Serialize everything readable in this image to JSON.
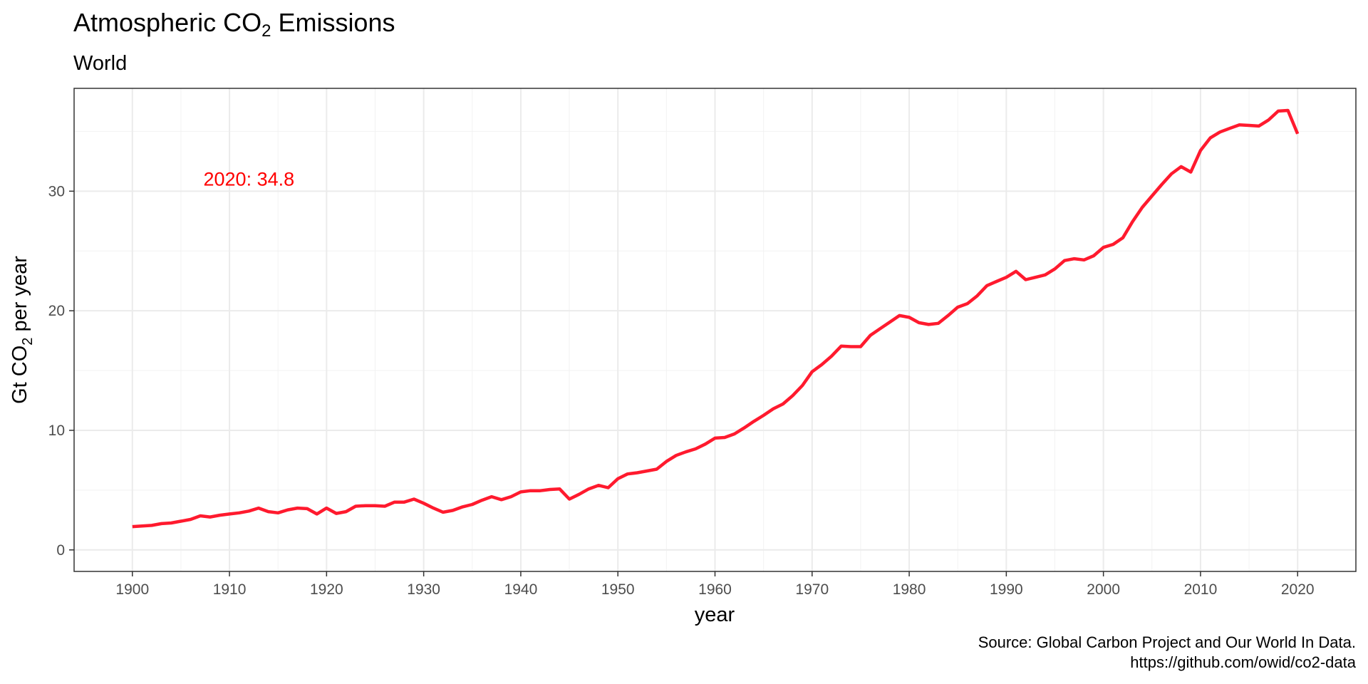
{
  "title_prefix": "Atmospheric CO",
  "title_sub": "2",
  "title_suffix": " Emissions",
  "subtitle": "World",
  "caption_line1": "Source: Global Carbon Project and Our World In Data.",
  "caption_line2": "https://github.com/owid/co2-data",
  "chart_data": {
    "type": "line",
    "xlabel": "year",
    "ylabel": "Gt CO2 per year",
    "xlim": [
      1894,
      2026
    ],
    "ylim": [
      -1.8,
      38.6
    ],
    "xticks": [
      1900,
      1910,
      1920,
      1930,
      1940,
      1950,
      1960,
      1970,
      1980,
      1990,
      2000,
      2010,
      2020
    ],
    "yticks": [
      0,
      10,
      20,
      30
    ],
    "grid": true,
    "line_color": "#ff1a2e",
    "annotation": {
      "text": "2020: 34.8",
      "x": 1912,
      "y": 31.0,
      "color": "#ff0000"
    },
    "x": [
      1900,
      1901,
      1902,
      1903,
      1904,
      1905,
      1906,
      1907,
      1908,
      1909,
      1910,
      1911,
      1912,
      1913,
      1914,
      1915,
      1916,
      1917,
      1918,
      1919,
      1920,
      1921,
      1922,
      1923,
      1924,
      1925,
      1926,
      1927,
      1928,
      1929,
      1930,
      1931,
      1932,
      1933,
      1934,
      1935,
      1936,
      1937,
      1938,
      1939,
      1940,
      1941,
      1942,
      1943,
      1944,
      1945,
      1946,
      1947,
      1948,
      1949,
      1950,
      1951,
      1952,
      1953,
      1954,
      1955,
      1956,
      1957,
      1958,
      1959,
      1960,
      1961,
      1962,
      1963,
      1964,
      1965,
      1966,
      1967,
      1968,
      1969,
      1970,
      1971,
      1972,
      1973,
      1974,
      1975,
      1976,
      1977,
      1978,
      1979,
      1980,
      1981,
      1982,
      1983,
      1984,
      1985,
      1986,
      1987,
      1988,
      1989,
      1990,
      1991,
      1992,
      1993,
      1994,
      1995,
      1996,
      1997,
      1998,
      1999,
      2000,
      2001,
      2002,
      2003,
      2004,
      2005,
      2006,
      2007,
      2008,
      2009,
      2010,
      2011,
      2012,
      2013,
      2014,
      2015,
      2016,
      2017,
      2018,
      2019,
      2020
    ],
    "values": [
      1.95,
      2.0,
      2.05,
      2.2,
      2.25,
      2.4,
      2.55,
      2.85,
      2.75,
      2.9,
      3.0,
      3.1,
      3.25,
      3.5,
      3.2,
      3.1,
      3.35,
      3.5,
      3.45,
      3.0,
      3.5,
      3.05,
      3.2,
      3.65,
      3.7,
      3.7,
      3.65,
      4.0,
      4.0,
      4.25,
      3.9,
      3.5,
      3.15,
      3.3,
      3.6,
      3.8,
      4.15,
      4.45,
      4.2,
      4.45,
      4.85,
      4.95,
      4.95,
      5.05,
      5.1,
      4.25,
      4.65,
      5.1,
      5.4,
      5.2,
      5.95,
      6.35,
      6.45,
      6.6,
      6.75,
      7.4,
      7.9,
      8.2,
      8.45,
      8.85,
      9.35,
      9.4,
      9.7,
      10.2,
      10.75,
      11.25,
      11.8,
      12.2,
      12.9,
      13.75,
      14.9,
      15.5,
      16.2,
      17.05,
      17.0,
      17.0,
      17.95,
      18.5,
      19.05,
      19.6,
      19.45,
      19.0,
      18.85,
      18.95,
      19.6,
      20.3,
      20.6,
      21.25,
      22.1,
      22.45,
      22.8,
      23.3,
      22.6,
      22.8,
      23.0,
      23.5,
      24.2,
      24.35,
      24.25,
      24.6,
      25.3,
      25.55,
      26.1,
      27.45,
      28.65,
      29.6,
      30.55,
      31.45,
      32.05,
      31.6,
      33.4,
      34.45,
      34.95,
      35.25,
      35.55,
      35.5,
      35.45,
      35.95,
      36.7,
      36.75,
      34.8
    ]
  }
}
